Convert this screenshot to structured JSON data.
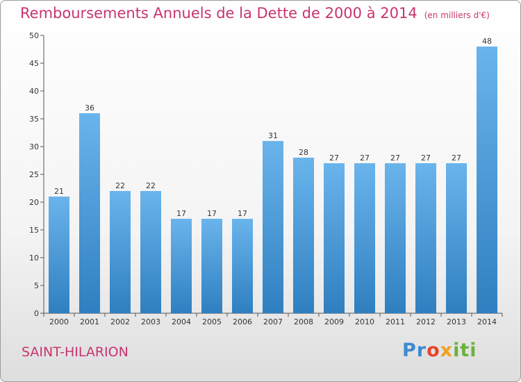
{
  "header": {
    "title": "Remboursements Annuels de la Dette de 2000 à 2014",
    "unit": "(en milliers d'€)"
  },
  "footer": {
    "city": "SAINT-HILARION",
    "logo": "Proxiti"
  },
  "colors": {
    "bar_light": "#6ab4ec",
    "bar_dark": "#2f7fc0",
    "title": "#c8346e"
  },
  "chart_data": {
    "type": "bar",
    "title": "Remboursements Annuels de la Dette de 2000 à 2014",
    "xlabel": "",
    "ylabel": "",
    "categories": [
      "2000",
      "2001",
      "2002",
      "2003",
      "2004",
      "2005",
      "2006",
      "2007",
      "2008",
      "2009",
      "2010",
      "2011",
      "2012",
      "2013",
      "2014"
    ],
    "values": [
      21,
      36,
      22,
      22,
      17,
      17,
      17,
      31,
      28,
      27,
      27,
      27,
      27,
      27,
      48
    ],
    "ylim": [
      0,
      50
    ],
    "yticks": [
      0,
      5,
      10,
      15,
      20,
      25,
      30,
      35,
      40,
      45,
      50
    ],
    "grid": false,
    "legend": "none"
  }
}
